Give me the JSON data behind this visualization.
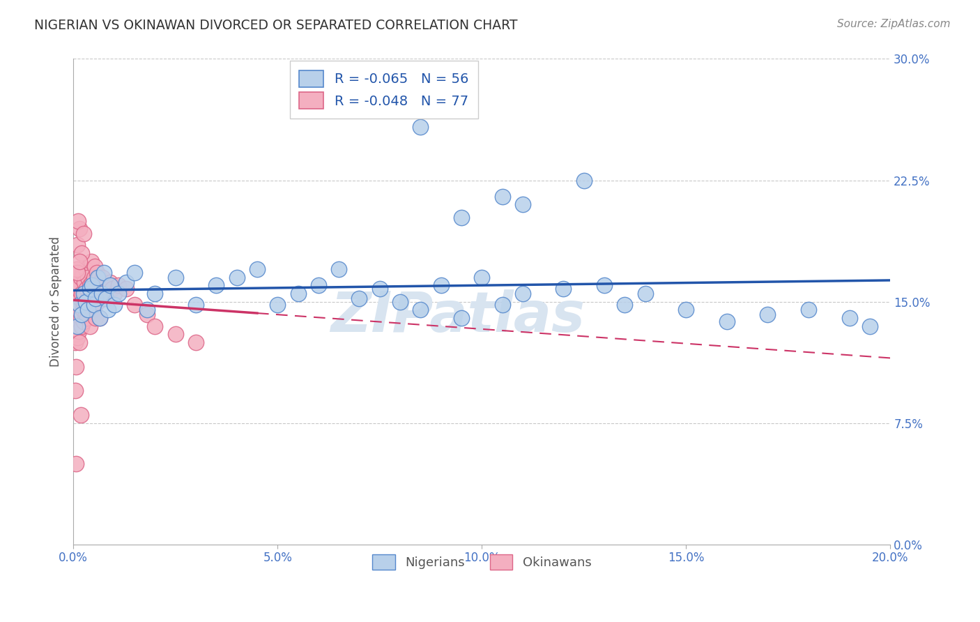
{
  "title": "NIGERIAN VS OKINAWAN DIVORCED OR SEPARATED CORRELATION CHART",
  "source_text": "Source: ZipAtlas.com",
  "ylabel": "Divorced or Separated",
  "xticks": [
    0.0,
    5.0,
    10.0,
    15.0,
    20.0
  ],
  "xticklabels": [
    "0.0%",
    "5.0%",
    "10.0%",
    "15.0%",
    "20.0%"
  ],
  "yticks": [
    0.0,
    7.5,
    15.0,
    22.5,
    30.0
  ],
  "yticklabels": [
    "0.0%",
    "7.5%",
    "15.0%",
    "22.5%",
    "30.0%"
  ],
  "xlim": [
    0.0,
    20.0
  ],
  "ylim": [
    0.0,
    30.0
  ],
  "nigerian_R": -0.065,
  "nigerian_N": 56,
  "okinawan_R": -0.048,
  "okinawan_N": 77,
  "nigerian_color": "#b8d0ea",
  "okinawan_color": "#f4afc0",
  "nigerian_edge_color": "#5588cc",
  "okinawan_edge_color": "#dd6688",
  "nigerian_line_color": "#2255aa",
  "okinawan_line_color": "#cc3366",
  "tick_color": "#4472c4",
  "watermark": "ZIPatlas",
  "nigerian_x": [
    0.1,
    0.15,
    0.2,
    0.25,
    0.3,
    0.35,
    0.4,
    0.45,
    0.5,
    0.55,
    0.6,
    0.65,
    0.7,
    0.75,
    0.8,
    0.85,
    0.9,
    1.0,
    1.1,
    1.3,
    1.5,
    1.8,
    2.0,
    2.5,
    3.0,
    3.5,
    4.0,
    4.5,
    5.0,
    5.5,
    6.0,
    6.5,
    7.0,
    7.5,
    8.0,
    8.5,
    9.0,
    9.5,
    10.0,
    10.5,
    11.0,
    12.0,
    13.0,
    14.0,
    15.0,
    16.0,
    17.0,
    18.0,
    19.0,
    19.5,
    8.5,
    9.5,
    10.5,
    11.0,
    12.5,
    13.5
  ],
  "nigerian_y": [
    13.5,
    14.8,
    14.2,
    15.5,
    15.0,
    14.5,
    15.8,
    16.0,
    14.8,
    15.2,
    16.5,
    14.0,
    15.5,
    16.8,
    15.2,
    14.5,
    16.0,
    14.8,
    15.5,
    16.2,
    16.8,
    14.5,
    15.5,
    16.5,
    14.8,
    16.0,
    16.5,
    17.0,
    14.8,
    15.5,
    16.0,
    17.0,
    15.2,
    15.8,
    15.0,
    14.5,
    16.0,
    14.0,
    16.5,
    14.8,
    15.5,
    15.8,
    16.0,
    15.5,
    14.5,
    13.8,
    14.2,
    14.5,
    14.0,
    13.5,
    25.8,
    20.2,
    21.5,
    21.0,
    22.5,
    14.8
  ],
  "okinawan_x": [
    0.02,
    0.03,
    0.04,
    0.05,
    0.06,
    0.07,
    0.08,
    0.09,
    0.1,
    0.1,
    0.12,
    0.13,
    0.14,
    0.15,
    0.15,
    0.17,
    0.18,
    0.19,
    0.2,
    0.2,
    0.22,
    0.24,
    0.25,
    0.25,
    0.27,
    0.28,
    0.3,
    0.3,
    0.32,
    0.34,
    0.35,
    0.36,
    0.38,
    0.4,
    0.4,
    0.42,
    0.44,
    0.45,
    0.45,
    0.48,
    0.5,
    0.5,
    0.52,
    0.55,
    0.55,
    0.58,
    0.6,
    0.62,
    0.65,
    0.65,
    0.7,
    0.72,
    0.75,
    0.8,
    0.85,
    0.9,
    0.95,
    1.0,
    1.1,
    1.3,
    1.5,
    1.8,
    2.0,
    2.5,
    3.0,
    0.15,
    0.1,
    0.08,
    0.12,
    0.2,
    0.25,
    0.1,
    0.15,
    0.07,
    0.05,
    0.06,
    0.18
  ],
  "okinawan_y": [
    13.5,
    14.0,
    12.5,
    15.0,
    14.5,
    13.0,
    15.5,
    14.2,
    12.8,
    15.8,
    14.5,
    13.2,
    16.0,
    14.8,
    12.5,
    15.2,
    14.0,
    16.5,
    15.5,
    13.5,
    16.8,
    14.5,
    15.0,
    13.8,
    16.2,
    15.5,
    17.0,
    14.2,
    15.8,
    14.0,
    16.5,
    15.2,
    14.8,
    16.0,
    13.5,
    15.5,
    17.5,
    14.5,
    16.2,
    15.8,
    16.5,
    14.5,
    17.2,
    15.5,
    14.0,
    16.8,
    15.0,
    16.5,
    15.2,
    14.0,
    15.8,
    16.5,
    15.2,
    16.0,
    15.5,
    16.2,
    15.8,
    15.5,
    16.0,
    15.8,
    14.8,
    14.2,
    13.5,
    13.0,
    12.5,
    19.5,
    18.5,
    17.0,
    20.0,
    18.0,
    19.2,
    16.8,
    17.5,
    11.0,
    9.5,
    5.0,
    8.0
  ]
}
